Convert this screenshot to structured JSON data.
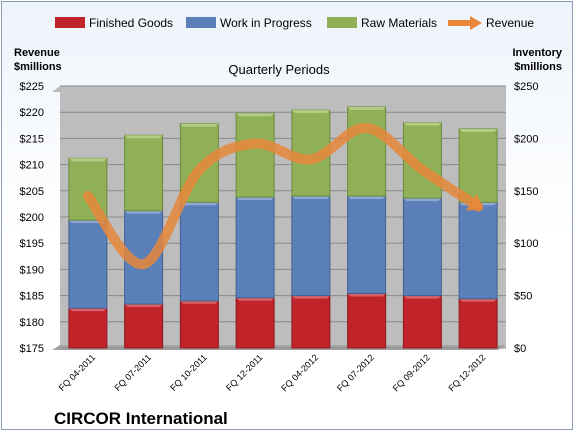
{
  "chart_data": {
    "type": "bar",
    "stacked": true,
    "title": "Quarterly Periods",
    "company": "CIRCOR International",
    "categories": [
      "FQ 04-2011",
      "FQ 07-2011",
      "FQ 10-2011",
      "FQ 12-2011",
      "FQ 04-2012",
      "FQ 07-2012",
      "FQ 09-2012",
      "FQ 12-2012"
    ],
    "series": [
      {
        "name": "Finished Goods",
        "axis": "right",
        "color": "#c0232a",
        "values": [
          38,
          42,
          45,
          48,
          50,
          52,
          50,
          47
        ]
      },
      {
        "name": "Work in Progress",
        "axis": "right",
        "color": "#5b7fb8",
        "values": [
          84,
          89,
          94,
          96,
          95,
          93,
          93,
          92
        ]
      },
      {
        "name": "Raw Materials",
        "axis": "right",
        "color": "#8fb057",
        "values": [
          59,
          72,
          75,
          80,
          82,
          85,
          72,
          70
        ]
      }
    ],
    "line_series": {
      "name": "Revenue",
      "axis": "left",
      "color": "#e8873a",
      "values": [
        204,
        191,
        209,
        214,
        211,
        217,
        209,
        202
      ]
    },
    "left_axis": {
      "label_line1": "Revenue",
      "label_line2": "$millions",
      "min": 175,
      "max": 225,
      "step": 5,
      "ticks": [
        "$175",
        "$180",
        "$185",
        "$190",
        "$195",
        "$200",
        "$205",
        "$210",
        "$215",
        "$220",
        "$225"
      ]
    },
    "right_axis": {
      "label_line1": "Inventory",
      "label_line2": "$millions",
      "min": 0,
      "max": 250,
      "step": 50,
      "ticks": [
        "$0",
        "$50",
        "$100",
        "$150",
        "$200",
        "$250"
      ]
    },
    "legend": {
      "position": "top",
      "entries": [
        "Finished Goods",
        "Work in Progress",
        "Raw Materials",
        "Revenue"
      ]
    },
    "grid": true
  }
}
